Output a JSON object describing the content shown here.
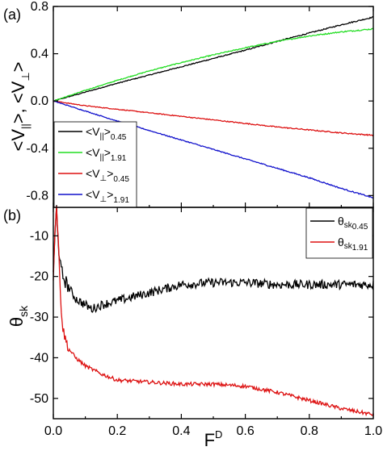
{
  "chart_data": [
    {
      "panel_label": "(a)",
      "type": "line",
      "ylabel": "<V||>, <V⊥>",
      "xlim": [
        0.0,
        1.0
      ],
      "ylim": [
        -0.9,
        0.8
      ],
      "xticks": [
        "0.0",
        "0.2",
        "0.4",
        "0.6",
        "0.8",
        "1.0"
      ],
      "yticks": [
        "0.8",
        "0.4",
        "0.0",
        "-0.4",
        "-0.8"
      ],
      "legend_position": "bottom-left",
      "series": [
        {
          "name": "<V||>0.45",
          "label_main": "<V",
          "label_sub": "||",
          "label_rest": ">",
          "label_sub2": "0.45",
          "color": "#000000",
          "x": [
            0.0,
            0.1,
            0.2,
            0.3,
            0.4,
            0.5,
            0.6,
            0.7,
            0.8,
            0.9,
            1.0
          ],
          "y": [
            0.0,
            0.075,
            0.15,
            0.22,
            0.29,
            0.36,
            0.43,
            0.505,
            0.575,
            0.645,
            0.71
          ]
        },
        {
          "name": "<V||>1.91",
          "label_main": "<V",
          "label_sub": "||",
          "label_rest": ">",
          "label_sub2": "1.91",
          "color": "#22dd22",
          "x": [
            0.0,
            0.1,
            0.2,
            0.3,
            0.4,
            0.5,
            0.6,
            0.7,
            0.8,
            0.9,
            1.0
          ],
          "y": [
            0.0,
            0.09,
            0.175,
            0.255,
            0.325,
            0.39,
            0.45,
            0.505,
            0.55,
            0.585,
            0.61
          ]
        },
        {
          "name": "<V⊥>0.45",
          "label_main": "<V",
          "label_sub": "⊥",
          "label_rest": ">",
          "label_sub2": "0.45",
          "color": "#dd1111",
          "x": [
            0.0,
            0.1,
            0.2,
            0.3,
            0.4,
            0.5,
            0.6,
            0.7,
            0.8,
            0.9,
            1.0
          ],
          "y": [
            0.0,
            -0.04,
            -0.07,
            -0.1,
            -0.13,
            -0.16,
            -0.19,
            -0.22,
            -0.245,
            -0.27,
            -0.29
          ]
        },
        {
          "name": "<V⊥>1.91",
          "label_main": "<V",
          "label_sub": "⊥",
          "label_rest": ">",
          "label_sub2": "1.91",
          "color": "#1111cc",
          "x": [
            0.0,
            0.1,
            0.2,
            0.3,
            0.4,
            0.5,
            0.6,
            0.7,
            0.8,
            0.9,
            1.0
          ],
          "y": [
            0.0,
            -0.085,
            -0.17,
            -0.25,
            -0.33,
            -0.41,
            -0.49,
            -0.57,
            -0.65,
            -0.74,
            -0.82
          ]
        }
      ]
    },
    {
      "panel_label": "(b)",
      "type": "line",
      "ylabel_main": "θ",
      "ylabel_sub": "sk",
      "xlabel_main": "F",
      "xlabel_sup": "D",
      "xlim": [
        0.0,
        1.0
      ],
      "ylim": [
        -55,
        -3
      ],
      "xticks": [
        "0.0",
        "0.2",
        "0.4",
        "0.6",
        "0.8",
        "1.0"
      ],
      "yticks": [
        "-10",
        "-20",
        "-30",
        "-40",
        "-50"
      ],
      "legend_position": "top-right",
      "series": [
        {
          "name": "θsk0.45",
          "label_main": "θ",
          "label_sub": "sk",
          "label_sub2": "0.45",
          "color": "#000000",
          "x": [
            0.0,
            0.005,
            0.01,
            0.015,
            0.02,
            0.03,
            0.05,
            0.07,
            0.1,
            0.12,
            0.15,
            0.2,
            0.25,
            0.3,
            0.35,
            0.4,
            0.5,
            0.6,
            0.7,
            0.8,
            0.9,
            1.0
          ],
          "y": [
            -20,
            -10,
            -3,
            -10,
            -17,
            -20,
            -23,
            -25.5,
            -27,
            -28,
            -27,
            -26,
            -25,
            -24,
            -23,
            -22,
            -21.5,
            -21.5,
            -22,
            -22,
            -22,
            -22
          ]
        },
        {
          "name": "θsk1.91",
          "label_main": "θ",
          "label_sub": "sk",
          "label_sub2": "1.91",
          "color": "#dd1111",
          "x": [
            0.0,
            0.005,
            0.01,
            0.015,
            0.02,
            0.025,
            0.03,
            0.04,
            0.05,
            0.07,
            0.1,
            0.15,
            0.2,
            0.3,
            0.4,
            0.5,
            0.6,
            0.7,
            0.8,
            0.9,
            1.0
          ],
          "y": [
            -20,
            -8,
            -3,
            -10,
            -20,
            -28,
            -33,
            -36,
            -38,
            -40,
            -42,
            -44,
            -45.5,
            -46,
            -46.5,
            -46.5,
            -47,
            -48.5,
            -50.5,
            -52.5,
            -54
          ]
        }
      ]
    }
  ]
}
